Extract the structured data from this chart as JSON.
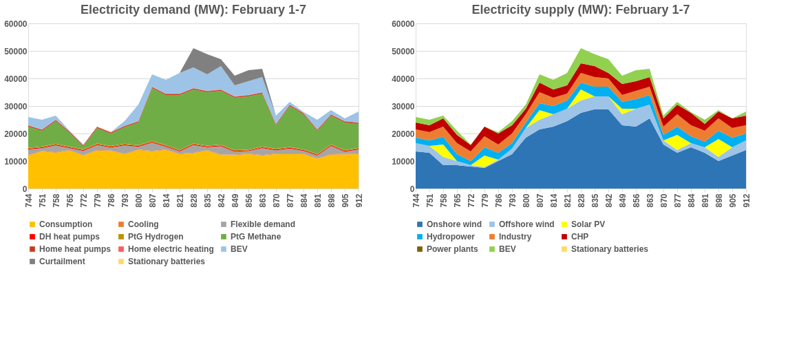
{
  "chart_data": [
    {
      "type": "area",
      "title": "Electricity demand (MW): February 1-7",
      "stacked": true,
      "legend": "bottom",
      "grid": "y",
      "x": [
        744,
        751,
        758,
        765,
        772,
        779,
        786,
        793,
        800,
        807,
        814,
        821,
        828,
        835,
        842,
        849,
        856,
        863,
        870,
        877,
        884,
        891,
        898,
        905,
        912
      ],
      "xlim": [
        744,
        912
      ],
      "xticks": [
        744,
        751,
        758,
        765,
        772,
        779,
        786,
        793,
        800,
        807,
        814,
        821,
        828,
        835,
        842,
        849,
        856,
        863,
        870,
        877,
        884,
        891,
        898,
        905,
        912
      ],
      "ylim": [
        0,
        60000
      ],
      "yticks": [
        0,
        10000,
        20000,
        30000,
        40000,
        50000,
        60000
      ],
      "series": [
        {
          "name": "Consumption",
          "color": "#ffc000",
          "values": [
            12000,
            13500,
            13000,
            13800,
            12000,
            13800,
            13700,
            12500,
            14000,
            13500,
            14000,
            12500,
            12800,
            13800,
            12200,
            12200,
            12500,
            12000,
            12500,
            12500,
            12500,
            10800,
            12300,
            12400,
            12500
          ]
        },
        {
          "name": "Cooling",
          "color": "#ed7d31",
          "values": [
            200,
            200,
            200,
            200,
            200,
            200,
            200,
            200,
            200,
            200,
            200,
            200,
            200,
            200,
            200,
            200,
            200,
            200,
            200,
            200,
            200,
            200,
            200,
            200,
            200
          ]
        },
        {
          "name": "Flexible demand",
          "color": "#a5a5a5",
          "values": [
            2000,
            1000,
            2500,
            700,
            1500,
            1800,
            1000,
            3000,
            1000,
            3000,
            1000,
            800,
            2800,
            1000,
            3000,
            1000,
            900,
            2500,
            1200,
            1800,
            1000,
            1000,
            3000,
            800,
            1500
          ]
        },
        {
          "name": "DH heat pumps",
          "color": "#ff0000",
          "values": [
            300,
            300,
            300,
            300,
            300,
            300,
            300,
            300,
            300,
            300,
            300,
            300,
            300,
            300,
            300,
            300,
            300,
            300,
            300,
            300,
            300,
            300,
            300,
            300,
            300
          ]
        },
        {
          "name": "PtG Hydrogen",
          "color": "#bf9000",
          "values": [
            300,
            300,
            300,
            300,
            300,
            300,
            300,
            300,
            300,
            300,
            300,
            300,
            300,
            300,
            300,
            300,
            300,
            300,
            300,
            300,
            300,
            300,
            300,
            300,
            300
          ]
        },
        {
          "name": "PtG Methane",
          "color": "#70ad47",
          "values": [
            7700,
            5700,
            8200,
            5000,
            1000,
            5600,
            4500,
            6000,
            8200,
            19200,
            18200,
            19900,
            19600,
            19400,
            19500,
            19000,
            19300,
            19200,
            8500,
            14900,
            12700,
            8400,
            10400,
            10000,
            8700
          ]
        },
        {
          "name": "Home heat pumps",
          "color": "#c43e1c",
          "values": [
            400,
            400,
            400,
            400,
            400,
            400,
            400,
            400,
            400,
            400,
            400,
            400,
            400,
            400,
            400,
            400,
            400,
            400,
            400,
            400,
            400,
            400,
            400,
            400,
            400
          ]
        },
        {
          "name": "Home electric heating",
          "color": "#ff5b5b",
          "values": [
            100,
            100,
            100,
            100,
            100,
            100,
            100,
            100,
            100,
            100,
            100,
            100,
            100,
            100,
            100,
            100,
            100,
            100,
            100,
            100,
            100,
            100,
            100,
            100,
            100
          ]
        },
        {
          "name": "BEV",
          "color": "#9dc3e6",
          "values": [
            3000,
            3500,
            1500,
            200,
            200,
            0,
            0,
            1700,
            6000,
            4500,
            5000,
            7500,
            7500,
            6000,
            8500,
            4000,
            5000,
            5500,
            3000,
            1000,
            300,
            3500,
            1500,
            1000,
            4000
          ]
        },
        {
          "name": "Curtailment",
          "color": "#808080",
          "values": [
            0,
            0,
            0,
            0,
            0,
            0,
            0,
            0,
            0,
            0,
            0,
            0,
            7000,
            7300,
            2500,
            3500,
            4000,
            3000,
            0,
            0,
            0,
            0,
            0,
            0,
            0
          ]
        },
        {
          "name": "Stationary batteries",
          "color": "#ffd966",
          "values": [
            null,
            null,
            null,
            null,
            null,
            null,
            null,
            null,
            null,
            null,
            null,
            null,
            null,
            null,
            null,
            null,
            null,
            null,
            null,
            null,
            null,
            null,
            null,
            null,
            null
          ]
        }
      ]
    },
    {
      "type": "area",
      "title": "Electricity supply (MW): February 1-7",
      "stacked": true,
      "legend": "bottom",
      "grid": "y",
      "x": [
        744,
        751,
        758,
        765,
        772,
        779,
        786,
        793,
        800,
        807,
        814,
        821,
        828,
        835,
        842,
        849,
        856,
        863,
        870,
        877,
        884,
        891,
        898,
        905,
        912
      ],
      "xlim": [
        744,
        912
      ],
      "xticks": [
        744,
        751,
        758,
        765,
        772,
        779,
        786,
        793,
        800,
        807,
        814,
        821,
        828,
        835,
        842,
        849,
        856,
        863,
        870,
        877,
        884,
        891,
        898,
        905,
        912
      ],
      "ylim": [
        0,
        60000
      ],
      "yticks": [
        0,
        10000,
        20000,
        30000,
        40000,
        50000,
        60000
      ],
      "series": [
        {
          "name": "Onshore wind",
          "color": "#2e75b6",
          "values": [
            13500,
            13000,
            8500,
            8500,
            8000,
            7500,
            10000,
            12500,
            18500,
            21500,
            22500,
            24500,
            27500,
            28800,
            28800,
            23000,
            22500,
            25500,
            16000,
            13000,
            15000,
            13000,
            10000,
            12000,
            14000
          ]
        },
        {
          "name": "Offshore wind",
          "color": "#9dc3e6",
          "values": [
            3000,
            2500,
            3000,
            1500,
            500,
            300,
            500,
            2000,
            3500,
            3500,
            4500,
            4500,
            4500,
            4700,
            4700,
            4000,
            6500,
            5000,
            1500,
            1000,
            1500,
            2000,
            1500,
            3000,
            3500
          ]
        },
        {
          "name": "Solar PV",
          "color": "#ffff00",
          "values": [
            0,
            0,
            4500,
            0,
            0,
            4200,
            0,
            0,
            0,
            3500,
            0,
            0,
            4000,
            0,
            0,
            2000,
            0,
            0,
            0,
            5500,
            0,
            0,
            6500,
            0,
            0
          ]
        },
        {
          "name": "Hydropower",
          "color": "#00b0f0",
          "values": [
            2000,
            2000,
            2800,
            2500,
            1500,
            3000,
            2500,
            2000,
            2000,
            2500,
            3000,
            3000,
            2500,
            3500,
            3500,
            2500,
            3500,
            3500,
            2000,
            3000,
            2500,
            2000,
            3000,
            3500,
            2500
          ]
        },
        {
          "name": "Industry",
          "color": "#ed7d31",
          "values": [
            3000,
            3000,
            3700,
            4000,
            3500,
            4000,
            3000,
            3500,
            3000,
            4000,
            3000,
            2500,
            3500,
            3500,
            3000,
            2500,
            3000,
            3000,
            3000,
            4500,
            4000,
            4000,
            4500,
            3500,
            3000
          ]
        },
        {
          "name": "CHP",
          "color": "#c00000",
          "values": [
            2500,
            2500,
            3000,
            3000,
            2300,
            3500,
            4000,
            3000,
            2000,
            3500,
            3000,
            3000,
            3500,
            4000,
            2000,
            4000,
            3500,
            3500,
            3000,
            3500,
            4500,
            2500,
            2500,
            3500,
            3500
          ]
        },
        {
          "name": "Power plants",
          "color": "#7f6000",
          "values": [
            null,
            null,
            null,
            null,
            null,
            null,
            null,
            null,
            null,
            null,
            null,
            null,
            null,
            null,
            null,
            null,
            null,
            null,
            null,
            null,
            null,
            null,
            null,
            null,
            null
          ]
        },
        {
          "name": "BEV",
          "color": "#92d050",
          "values": [
            2000,
            2000,
            1000,
            1500,
            200,
            0,
            500,
            1500,
            1500,
            3000,
            3500,
            4500,
            5500,
            4300,
            5000,
            3000,
            4000,
            3000,
            1000,
            1000,
            300,
            1500,
            500,
            0,
            1500
          ]
        },
        {
          "name": "Stationary batteries",
          "color": "#ffd966",
          "values": [
            null,
            null,
            null,
            null,
            null,
            null,
            null,
            null,
            null,
            null,
            null,
            null,
            null,
            null,
            null,
            null,
            null,
            null,
            null,
            null,
            null,
            null,
            null,
            null,
            null
          ]
        }
      ]
    }
  ]
}
